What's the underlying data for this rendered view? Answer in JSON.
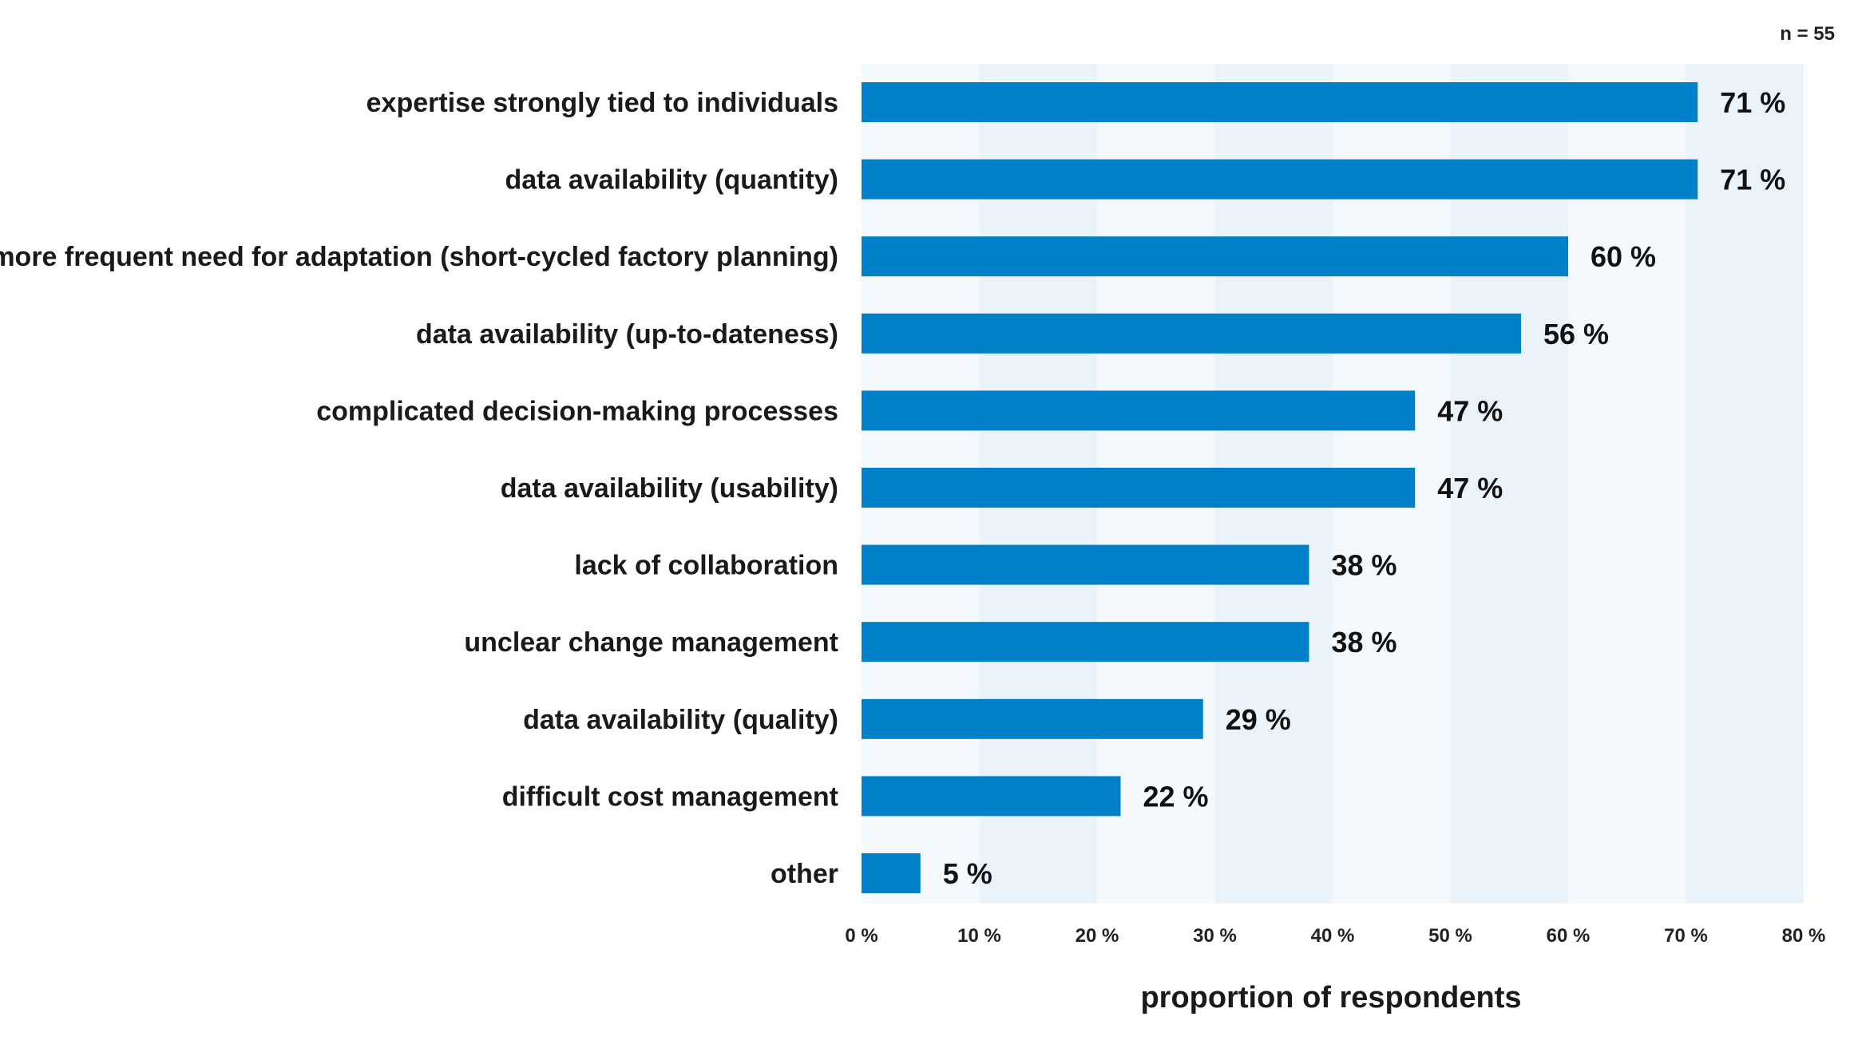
{
  "sample_note": "n = 55",
  "chart_data": {
    "type": "bar",
    "orientation": "horizontal",
    "xlabel": "proportion of respondents",
    "xlim": [
      0,
      80
    ],
    "x_ticks": [
      "0 %",
      "10 %",
      "20 %",
      "30 %",
      "40 %",
      "50 %",
      "60 %",
      "70 %",
      "80 %"
    ],
    "background_bands": "alternating light blue vertical bands",
    "bar_color": "#0080C9",
    "band_color_light": "#F3F9FC",
    "band_color_dark": "#EAF3FA",
    "categories": [
      "expertise strongly tied to individuals",
      "data availability (quantity)",
      "more frequent need for adaptation (short-cycled factory planning)",
      "data availability (up-to-dateness)",
      "complicated decision-making processes",
      "data availability (usability)",
      "lack of collaboration",
      "unclear change management",
      "data availability (quality)",
      "difficult cost management",
      "other"
    ],
    "values": [
      71,
      71,
      60,
      56,
      47,
      47,
      38,
      38,
      29,
      22,
      5
    ],
    "value_labels": [
      "71 %",
      "71 %",
      "60 %",
      "56 %",
      "47 %",
      "47 %",
      "38 %",
      "38 %",
      "29 %",
      "22 %",
      "5 %"
    ]
  }
}
